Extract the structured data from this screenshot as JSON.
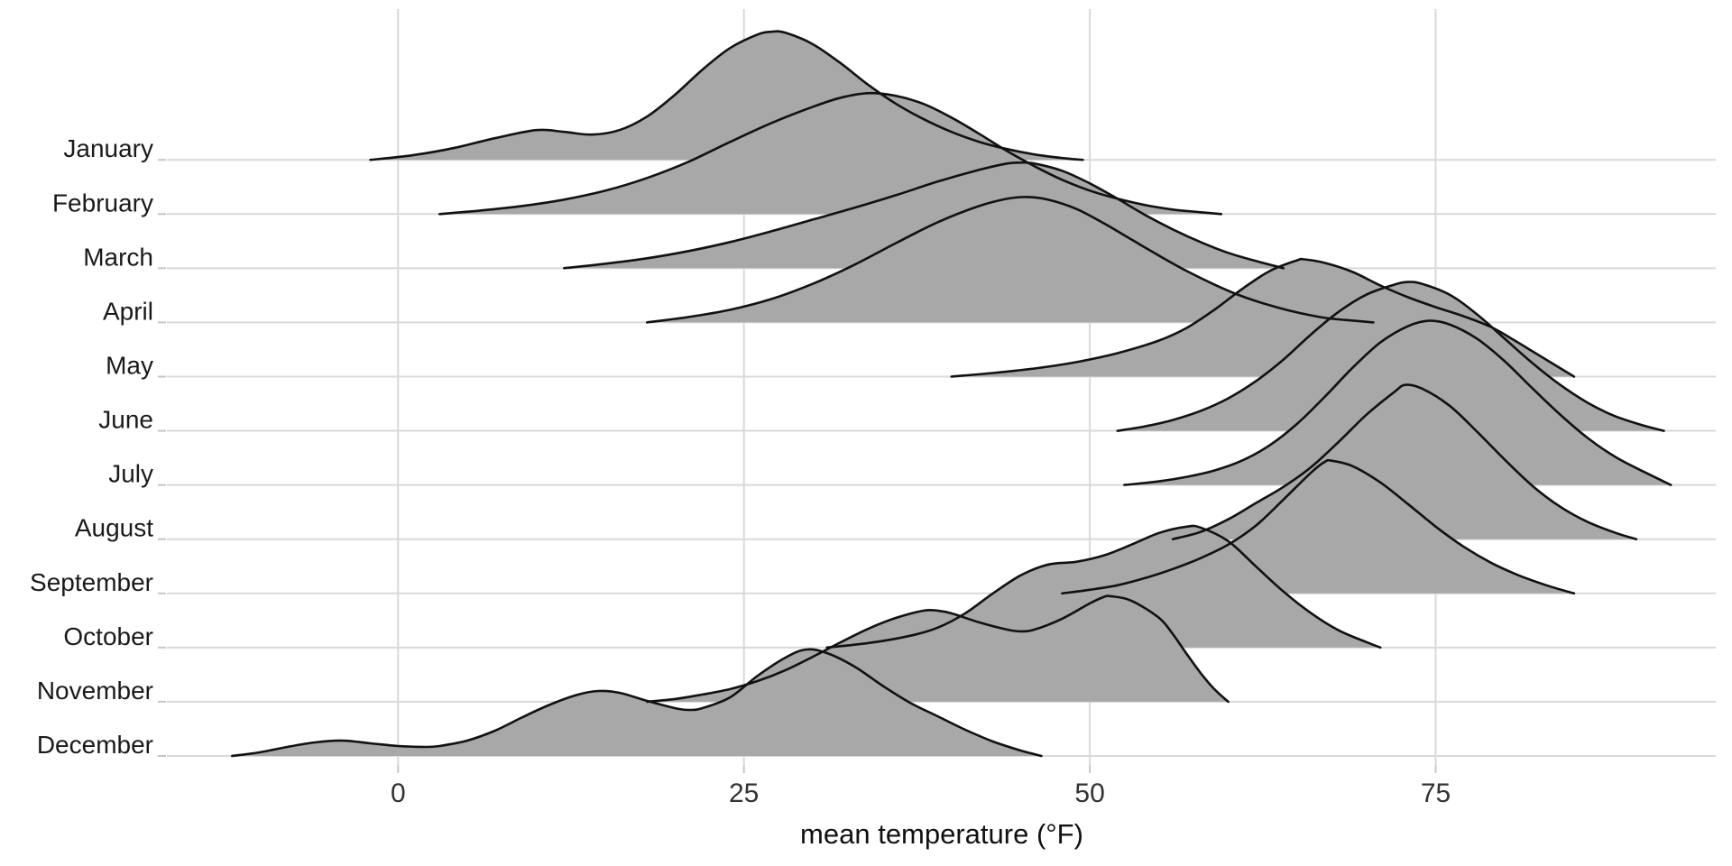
{
  "chart_data": {
    "type": "ridgeline",
    "title": "",
    "xlabel": "mean temperature (°F)",
    "x_tick_values": [
      0,
      25,
      50,
      75
    ],
    "x_tick_labels": [
      "0",
      "25",
      "50",
      "75"
    ],
    "x_axis_range_f": [
      -16.8,
      95.2
    ],
    "grid": "on",
    "legend": "none",
    "categories": [
      "January",
      "February",
      "March",
      "April",
      "May",
      "June",
      "July",
      "August",
      "September",
      "October",
      "November",
      "December"
    ],
    "height_unit_note": "density height in pixels; 60 px equals one month-row spacing",
    "series": [
      {
        "name": "January",
        "points": [
          [
            -2,
            0
          ],
          [
            1,
            5
          ],
          [
            4,
            13
          ],
          [
            7,
            24
          ],
          [
            10,
            33
          ],
          [
            12,
            31
          ],
          [
            14,
            28
          ],
          [
            16,
            33
          ],
          [
            18,
            48
          ],
          [
            20,
            72
          ],
          [
            22,
            100
          ],
          [
            24,
            124
          ],
          [
            26,
            139
          ],
          [
            27,
            142
          ],
          [
            28,
            141
          ],
          [
            30,
            128
          ],
          [
            32,
            107
          ],
          [
            34,
            83
          ],
          [
            36,
            62
          ],
          [
            38,
            45
          ],
          [
            40,
            31
          ],
          [
            42,
            20
          ],
          [
            44,
            12
          ],
          [
            46,
            6
          ],
          [
            48,
            2
          ],
          [
            49.5,
            0
          ]
        ]
      },
      {
        "name": "February",
        "points": [
          [
            3,
            0
          ],
          [
            6,
            4
          ],
          [
            9,
            9
          ],
          [
            12,
            16
          ],
          [
            15,
            26
          ],
          [
            18,
            40
          ],
          [
            21,
            58
          ],
          [
            24,
            80
          ],
          [
            27,
            101
          ],
          [
            30,
            119
          ],
          [
            32,
            129
          ],
          [
            34,
            134
          ],
          [
            36,
            131
          ],
          [
            38,
            122
          ],
          [
            40,
            107
          ],
          [
            42,
            89
          ],
          [
            44,
            70
          ],
          [
            46,
            53
          ],
          [
            48,
            38
          ],
          [
            50,
            26
          ],
          [
            52,
            17
          ],
          [
            54,
            10
          ],
          [
            56,
            5
          ],
          [
            58,
            2
          ],
          [
            59.5,
            0
          ]
        ]
      },
      {
        "name": "March",
        "points": [
          [
            12,
            0
          ],
          [
            15,
            5
          ],
          [
            18,
            11
          ],
          [
            21,
            19
          ],
          [
            24,
            29
          ],
          [
            27,
            41
          ],
          [
            30,
            54
          ],
          [
            33,
            67
          ],
          [
            36,
            81
          ],
          [
            39,
            96
          ],
          [
            42,
            109
          ],
          [
            44,
            116
          ],
          [
            45,
            117
          ],
          [
            46,
            116
          ],
          [
            48,
            108
          ],
          [
            50,
            94
          ],
          [
            52,
            77
          ],
          [
            54,
            59
          ],
          [
            56,
            43
          ],
          [
            58,
            29
          ],
          [
            60,
            17
          ],
          [
            62,
            8
          ],
          [
            64,
            0
          ]
        ]
      },
      {
        "name": "April",
        "points": [
          [
            18,
            0
          ],
          [
            21,
            6
          ],
          [
            24,
            14
          ],
          [
            27,
            26
          ],
          [
            30,
            43
          ],
          [
            33,
            64
          ],
          [
            36,
            88
          ],
          [
            39,
            111
          ],
          [
            42,
            129
          ],
          [
            44,
            137
          ],
          [
            45.5,
            139
          ],
          [
            47,
            136
          ],
          [
            49,
            126
          ],
          [
            51,
            110
          ],
          [
            53,
            92
          ],
          [
            55,
            74
          ],
          [
            57,
            57
          ],
          [
            59,
            42
          ],
          [
            61,
            29
          ],
          [
            63,
            19
          ],
          [
            65,
            11
          ],
          [
            67,
            5
          ],
          [
            69,
            2
          ],
          [
            70.5,
            0
          ]
        ]
      },
      {
        "name": "May",
        "points": [
          [
            40,
            0
          ],
          [
            43,
            4
          ],
          [
            46,
            9
          ],
          [
            49,
            16
          ],
          [
            52,
            26
          ],
          [
            55,
            40
          ],
          [
            57,
            54
          ],
          [
            59,
            74
          ],
          [
            61,
            97
          ],
          [
            63,
            117
          ],
          [
            65,
            129
          ],
          [
            65.5,
            130
          ],
          [
            67,
            126
          ],
          [
            69,
            116
          ],
          [
            71,
            101
          ],
          [
            73,
            88
          ],
          [
            75,
            77
          ],
          [
            77,
            67
          ],
          [
            79,
            55
          ],
          [
            80.5,
            42
          ],
          [
            82,
            28
          ],
          [
            83.5,
            14
          ],
          [
            85,
            0
          ]
        ]
      },
      {
        "name": "June",
        "points": [
          [
            52,
            0
          ],
          [
            54,
            5
          ],
          [
            56,
            12
          ],
          [
            58,
            22
          ],
          [
            60,
            36
          ],
          [
            62,
            55
          ],
          [
            64,
            79
          ],
          [
            66,
            107
          ],
          [
            68,
            132
          ],
          [
            70,
            151
          ],
          [
            72,
            162
          ],
          [
            73,
            165
          ],
          [
            74,
            163
          ],
          [
            76,
            151
          ],
          [
            78,
            129
          ],
          [
            80,
            102
          ],
          [
            82,
            75
          ],
          [
            84,
            51
          ],
          [
            86,
            31
          ],
          [
            88,
            16
          ],
          [
            90,
            6
          ],
          [
            91.5,
            0
          ]
        ]
      },
      {
        "name": "July",
        "points": [
          [
            52.5,
            0
          ],
          [
            55,
            4
          ],
          [
            57,
            9
          ],
          [
            59,
            16
          ],
          [
            61,
            27
          ],
          [
            63,
            44
          ],
          [
            65,
            68
          ],
          [
            67,
            98
          ],
          [
            69,
            130
          ],
          [
            71,
            158
          ],
          [
            73,
            176
          ],
          [
            74.5,
            182
          ],
          [
            76,
            178
          ],
          [
            78,
            162
          ],
          [
            80,
            137
          ],
          [
            82,
            107
          ],
          [
            84,
            78
          ],
          [
            86,
            52
          ],
          [
            88,
            31
          ],
          [
            90,
            15
          ],
          [
            92,
            0
          ]
        ]
      },
      {
        "name": "August",
        "points": [
          [
            56,
            0
          ],
          [
            58,
            8
          ],
          [
            60,
            22
          ],
          [
            62,
            40
          ],
          [
            64,
            58
          ],
          [
            66,
            80
          ],
          [
            68,
            108
          ],
          [
            70,
            138
          ],
          [
            72,
            163
          ],
          [
            72.8,
            171
          ],
          [
            74,
            167
          ],
          [
            76,
            148
          ],
          [
            78,
            119
          ],
          [
            80,
            88
          ],
          [
            82,
            59
          ],
          [
            84,
            36
          ],
          [
            86,
            19
          ],
          [
            88,
            7
          ],
          [
            89.5,
            0
          ]
        ]
      },
      {
        "name": "September",
        "points": [
          [
            48,
            0
          ],
          [
            50,
            4
          ],
          [
            52,
            9
          ],
          [
            54,
            17
          ],
          [
            56,
            27
          ],
          [
            58,
            39
          ],
          [
            60,
            54
          ],
          [
            62,
            75
          ],
          [
            64,
            104
          ],
          [
            66,
            134
          ],
          [
            67,
            146
          ],
          [
            67.5,
            147
          ],
          [
            69,
            141
          ],
          [
            71,
            123
          ],
          [
            73,
            99
          ],
          [
            75,
            74
          ],
          [
            77,
            52
          ],
          [
            79,
            34
          ],
          [
            81,
            20
          ],
          [
            83,
            9
          ],
          [
            85,
            0
          ]
        ]
      },
      {
        "name": "October",
        "points": [
          [
            31,
            0
          ],
          [
            34,
            5
          ],
          [
            37,
            13
          ],
          [
            39,
            22
          ],
          [
            41,
            38
          ],
          [
            43,
            60
          ],
          [
            45,
            80
          ],
          [
            47,
            92
          ],
          [
            49,
            95
          ],
          [
            51,
            102
          ],
          [
            53,
            114
          ],
          [
            55,
            127
          ],
          [
            57,
            134
          ],
          [
            58,
            133
          ],
          [
            60,
            118
          ],
          [
            62,
            90
          ],
          [
            64,
            62
          ],
          [
            66,
            38
          ],
          [
            68,
            19
          ],
          [
            70,
            6
          ],
          [
            71,
            0
          ]
        ]
      },
      {
        "name": "November",
        "points": [
          [
            18,
            0
          ],
          [
            20,
            3
          ],
          [
            22,
            8
          ],
          [
            24,
            14
          ],
          [
            26,
            23
          ],
          [
            28,
            35
          ],
          [
            30,
            50
          ],
          [
            32,
            66
          ],
          [
            34,
            81
          ],
          [
            36,
            93
          ],
          [
            38,
            101
          ],
          [
            39,
            101
          ],
          [
            40,
            98
          ],
          [
            42,
            88
          ],
          [
            44,
            80
          ],
          [
            45,
            78
          ],
          [
            46,
            80
          ],
          [
            48,
            92
          ],
          [
            50,
            109
          ],
          [
            51,
            116
          ],
          [
            51.5,
            117
          ],
          [
            53,
            112
          ],
          [
            55,
            93
          ],
          [
            56,
            75
          ],
          [
            57,
            53
          ],
          [
            58,
            32
          ],
          [
            59,
            14
          ],
          [
            60,
            0
          ]
        ]
      },
      {
        "name": "December",
        "points": [
          [
            -12,
            0
          ],
          [
            -10,
            4
          ],
          [
            -8,
            10
          ],
          [
            -6,
            15
          ],
          [
            -4,
            17
          ],
          [
            -2,
            14
          ],
          [
            0,
            11
          ],
          [
            2,
            10
          ],
          [
            3,
            11
          ],
          [
            5,
            17
          ],
          [
            7,
            28
          ],
          [
            9,
            43
          ],
          [
            11,
            57
          ],
          [
            13,
            68
          ],
          [
            14.5,
            72
          ],
          [
            16,
            70
          ],
          [
            18,
            61
          ],
          [
            20,
            53
          ],
          [
            21,
            51
          ],
          [
            22,
            53
          ],
          [
            24,
            65
          ],
          [
            26,
            89
          ],
          [
            28,
            109
          ],
          [
            29.5,
            118
          ],
          [
            31,
            114
          ],
          [
            33,
            99
          ],
          [
            35,
            78
          ],
          [
            37,
            59
          ],
          [
            39,
            44
          ],
          [
            41,
            29
          ],
          [
            43,
            16
          ],
          [
            45,
            6
          ],
          [
            46.5,
            0
          ]
        ]
      }
    ]
  },
  "style": {
    "ridge_fill": "#a8a8a8",
    "ridge_stroke": "#111111",
    "gridline_color": "#d9d9d9",
    "tick_color": "#c6c6c6",
    "month_label_color": "#1a1a1a",
    "tick_label_color": "#333333",
    "axis_title_color": "#111111",
    "background": "#ffffff"
  }
}
